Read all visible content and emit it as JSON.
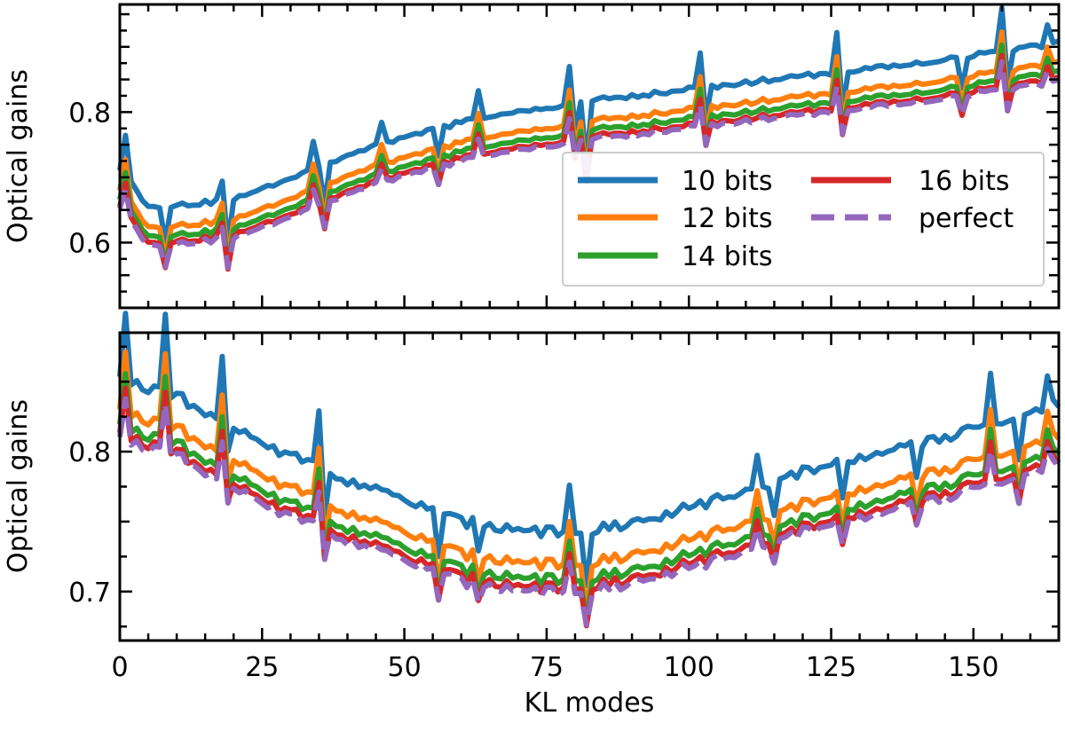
{
  "chart_data": {
    "type": "line",
    "xlabel": "KL modes",
    "xlim": [
      0,
      165
    ],
    "x_ticks": [
      0,
      25,
      50,
      75,
      100,
      125,
      150
    ],
    "legend": {
      "placement": "lower-right of top panel",
      "entries": [
        {
          "name": "10 bits",
          "color": "#1f77b4",
          "style": "solid"
        },
        {
          "name": "12 bits",
          "color": "#ff7f0e",
          "style": "solid"
        },
        {
          "name": "14 bits",
          "color": "#2ca02c",
          "style": "solid"
        },
        {
          "name": "16 bits",
          "color": "#d62728",
          "style": "solid"
        },
        {
          "name": "perfect",
          "color": "#9467bd",
          "style": "dashed"
        }
      ]
    },
    "panels": [
      {
        "ylabel": "Optical gains",
        "ylim": [
          0.5,
          0.965
        ],
        "y_ticks": [
          0.6,
          0.8
        ],
        "y_tick_labels": [
          "0.6",
          "0.8"
        ],
        "trend": [
          [
            0,
            0.66
          ],
          [
            5,
            0.6
          ],
          [
            20,
            0.61
          ],
          [
            40,
            0.68
          ],
          [
            60,
            0.73
          ],
          [
            80,
            0.76
          ],
          [
            100,
            0.78
          ],
          [
            120,
            0.8
          ],
          [
            140,
            0.82
          ],
          [
            165,
            0.85
          ]
        ],
        "offsets": {
          "10 bits": 0.055,
          "12 bits": 0.024,
          "14 bits": 0.01,
          "16 bits": 0.0,
          "perfect": -0.004
        },
        "spikes": [
          [
            1,
            0.04
          ],
          [
            8,
            -0.035
          ],
          [
            18,
            0.02
          ],
          [
            19,
            -0.04
          ],
          [
            34,
            0.025
          ],
          [
            36,
            -0.04
          ],
          [
            46,
            0.02
          ],
          [
            56,
            -0.025
          ],
          [
            63,
            0.025
          ],
          [
            79,
            0.035
          ],
          [
            80,
            -0.03
          ],
          [
            82,
            -0.06
          ],
          [
            102,
            0.035
          ],
          [
            103,
            -0.03
          ],
          [
            126,
            0.04
          ],
          [
            127,
            -0.035
          ],
          [
            148,
            -0.03
          ],
          [
            155,
            0.04
          ],
          [
            156,
            -0.03
          ],
          [
            163,
            0.02
          ]
        ]
      },
      {
        "ylabel": "Optical gains",
        "ylim": [
          0.665,
          0.885
        ],
        "y_ticks": [
          0.7,
          0.8
        ],
        "y_tick_labels": [
          "0.7",
          "0.8"
        ],
        "trend": [
          [
            0,
            0.81
          ],
          [
            10,
            0.8
          ],
          [
            20,
            0.775
          ],
          [
            40,
            0.74
          ],
          [
            60,
            0.71
          ],
          [
            80,
            0.7
          ],
          [
            100,
            0.72
          ],
          [
            120,
            0.745
          ],
          [
            140,
            0.765
          ],
          [
            165,
            0.795
          ]
        ],
        "offsets": {
          "10 bits": 0.04,
          "12 bits": 0.017,
          "14 bits": 0.006,
          "16 bits": 0.0,
          "perfect": -0.003
        },
        "spikes": [
          [
            1,
            0.03
          ],
          [
            8,
            0.035
          ],
          [
            18,
            0.03
          ],
          [
            19,
            -0.01
          ],
          [
            35,
            0.025
          ],
          [
            36,
            -0.02
          ],
          [
            56,
            -0.02
          ],
          [
            63,
            -0.01
          ],
          [
            79,
            0.02
          ],
          [
            82,
            -0.025
          ],
          [
            112,
            0.015
          ],
          [
            115,
            -0.015
          ],
          [
            127,
            -0.015
          ],
          [
            140,
            -0.015
          ],
          [
            153,
            0.02
          ],
          [
            158,
            -0.02
          ],
          [
            163,
            0.015
          ]
        ]
      }
    ]
  }
}
